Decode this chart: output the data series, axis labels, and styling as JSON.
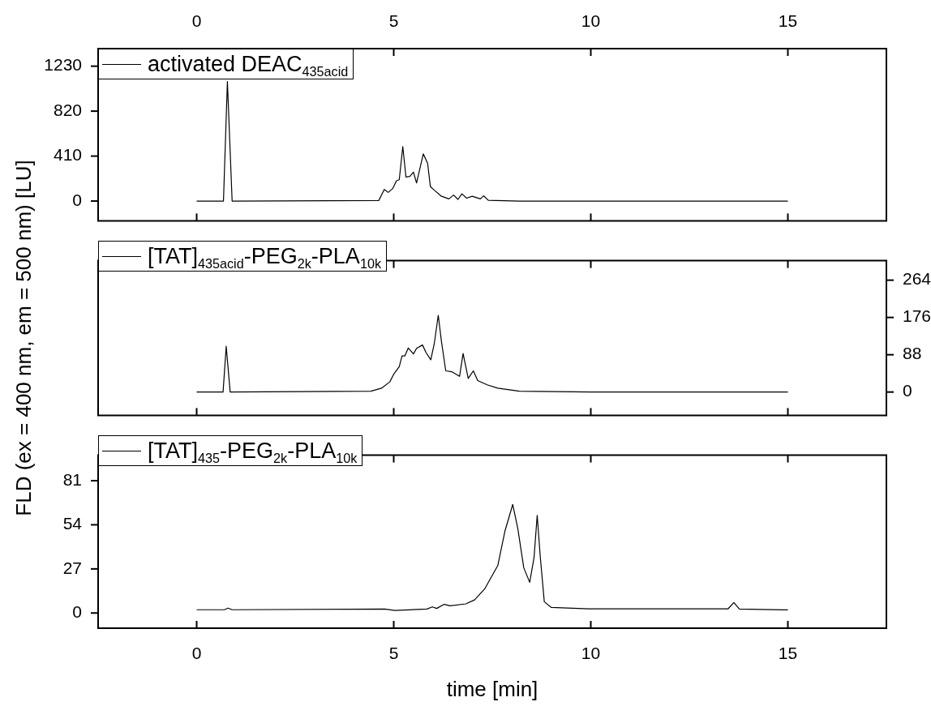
{
  "chart_data": [
    {
      "type": "line",
      "xlim": [
        -2.5,
        17.5
      ],
      "xticks": [
        0,
        5,
        10,
        15
      ],
      "ylim": [
        -180,
        1390
      ],
      "yticks": [
        0,
        410,
        820,
        1230
      ],
      "legend": "top left",
      "marker": "none",
      "x": [
        0,
        0.68,
        0.78,
        0.9,
        4.62,
        4.76,
        4.86,
        4.97,
        5.07,
        5.14,
        5.23,
        5.31,
        5.41,
        5.5,
        5.58,
        5.75,
        5.86,
        5.93,
        6.03,
        6.2,
        6.4,
        6.52,
        6.63,
        6.73,
        6.85,
        6.99,
        7.2,
        7.28,
        7.4,
        8.2,
        15
      ],
      "series": [
        {
          "name": "activated DEAC$_{435acid}$",
          "color": "#000000",
          "values": [
            0,
            0,
            1090,
            0,
            5,
            106,
            79,
            112,
            185,
            194,
            496,
            220,
            225,
            264,
            165,
            430,
            344,
            132,
            99,
            46,
            20,
            55,
            15,
            66,
            26,
            44,
            20,
            48,
            7,
            0,
            0
          ]
        }
      ]
    },
    {
      "type": "line",
      "xlim": [
        -2.5,
        17.5
      ],
      "xticks": [
        0,
        5,
        10,
        15
      ],
      "y2lim": [
        -55,
        310
      ],
      "y2ticks": [
        0,
        88,
        176,
        264
      ],
      "tick_labels": "y",
      "ylabel": "FLD (ex = 400 nm, em = 500 nm) [LU]",
      "legend": "top left",
      "marker": "none",
      "x": [
        0,
        0.67,
        0.75,
        0.85,
        4.42,
        4.69,
        4.9,
        5.0,
        5.14,
        5.21,
        5.28,
        5.37,
        5.5,
        5.58,
        5.73,
        5.82,
        5.94,
        6.03,
        6.13,
        6.21,
        6.32,
        6.47,
        6.67,
        6.76,
        6.89,
        7.02,
        7.13,
        7.37,
        7.64,
        8.19,
        10,
        15
      ],
      "series": [
        {
          "name": "[TAT]$_{435acid}$-PEG$_{2k}$-PLA$_{10k}$",
          "color": "#000000",
          "axis": "y2",
          "values": [
            0,
            0,
            108,
            0,
            2,
            9,
            24,
            42,
            60,
            85,
            85,
            104,
            90,
            103,
            111,
            93,
            76,
            115,
            181,
            120,
            50,
            48,
            37,
            91,
            32,
            50,
            27,
            17,
            9,
            2,
            0,
            0
          ]
        }
      ]
    },
    {
      "type": "line",
      "xlim": [
        -2.5,
        17.5
      ],
      "xticks": [
        0,
        5,
        10,
        15
      ],
      "xlabel": "time [min]",
      "ylim": [
        -9.3,
        96.6
      ],
      "yticks": [
        0,
        27,
        54,
        81
      ],
      "legend": "top left",
      "marker": "none",
      "x": [
        0,
        0.7,
        0.8,
        0.9,
        4.77,
        5.03,
        5.84,
        5.98,
        6.09,
        6.28,
        6.43,
        6.83,
        7.05,
        7.31,
        7.42,
        7.64,
        7.82,
        8.02,
        8.15,
        8.3,
        8.45,
        8.56,
        8.64,
        8.72,
        8.82,
        9.0,
        9.95,
        13.48,
        13.63,
        13.77,
        14.88,
        15
      ],
      "series": [
        {
          "name": "[TAT]$_{435}$-PEG$_{2k}$-PLA$_{10k}$",
          "color": "#000000",
          "values": [
            2,
            2,
            3,
            2,
            2.4,
            1.6,
            2.4,
            3.7,
            2.8,
            5.3,
            4.4,
            5.6,
            8,
            14.8,
            19.6,
            29,
            50,
            66.5,
            51.4,
            27.6,
            18.8,
            33.9,
            59.8,
            33.9,
            6.9,
            3.4,
            2.5,
            2.5,
            6.4,
            2.4,
            1.9,
            1.9
          ]
        }
      ]
    }
  ]
}
